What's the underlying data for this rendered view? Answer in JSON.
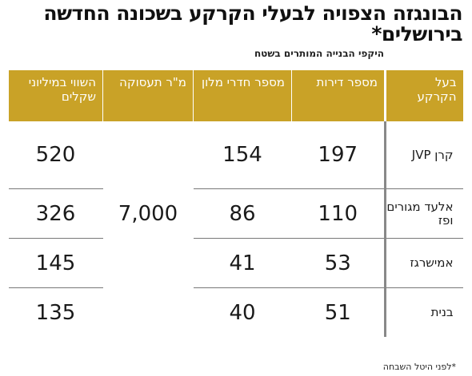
{
  "title": "הבונגזה הצפויה לבעלי הקרקע בשכונה החדשה בירושלים*",
  "subtitle": "היקפי הבנייה המותרים בשטח",
  "headers": {
    "owner": "בעל הקרקע",
    "apartments": "מספר דירות",
    "hotel_rooms": "מספר חדרי מלון",
    "office_sqm": "מ\"ר תעסוקה",
    "value": "השווי במיליוני שקלים"
  },
  "office_sqm_value": "7,000",
  "rows": [
    {
      "owner": "קרן JVP",
      "apartments": "197",
      "hotel_rooms": "154",
      "value": "520"
    },
    {
      "owner": "אלעד מגורים ופז",
      "apartments": "110",
      "hotel_rooms": "86",
      "value": "326"
    },
    {
      "owner": "אמישרגז",
      "apartments": "53",
      "hotel_rooms": "41",
      "value": "145"
    },
    {
      "owner": "בנית",
      "apartments": "51",
      "hotel_rooms": "40",
      "value": "135"
    }
  ],
  "footnote": "*לפני היטל השבחה",
  "colors": {
    "header_bg": "#c9a227",
    "header_text": "#ffffff"
  }
}
